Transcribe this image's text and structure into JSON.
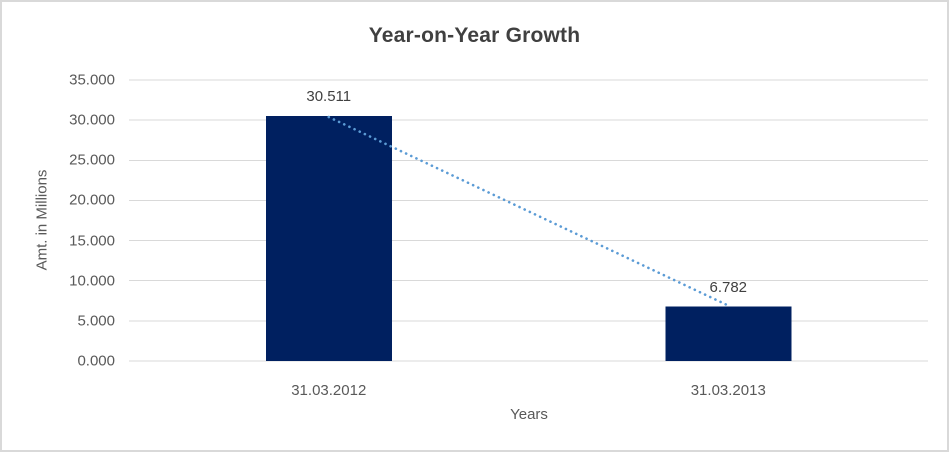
{
  "chart_data": {
    "type": "bar",
    "title": "Year-on-Year Growth",
    "xlabel": "Years",
    "ylabel": "Amt. in Millions",
    "categories": [
      "31.03.2012",
      "31.03.2013"
    ],
    "values": [
      30.511,
      6.782
    ],
    "data_labels": [
      "30.511",
      "6.782"
    ],
    "y_ticks": [
      {
        "value": 0,
        "label": "0.000"
      },
      {
        "value": 5,
        "label": "5.000"
      },
      {
        "value": 10,
        "label": "10.000"
      },
      {
        "value": 15,
        "label": "15.000"
      },
      {
        "value": 20,
        "label": "20.000"
      },
      {
        "value": 25,
        "label": "25.000"
      },
      {
        "value": 30,
        "label": "30.000"
      },
      {
        "value": 35,
        "label": "35.000"
      }
    ],
    "ylim": [
      0,
      35
    ],
    "grid": true,
    "legend": "none",
    "colors": {
      "bar": "#002060",
      "trendline": "#5b9bd5",
      "gridline": "#d9d9d9",
      "title_text": "#404040",
      "axis_text": "#595959"
    },
    "trendline": {
      "style": "dotted",
      "color": "#5b9bd5",
      "connects": "tops of the two bars"
    }
  }
}
